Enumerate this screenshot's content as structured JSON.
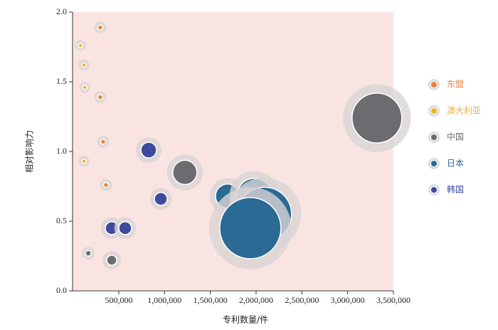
{
  "chart_data": {
    "type": "bubble",
    "x_label": "专利数量/件",
    "y_label": "相对影响力",
    "xlim": [
      0,
      3500000
    ],
    "ylim": [
      0,
      2.0
    ],
    "xticks": [
      {
        "value": 500000,
        "label": "500,000"
      },
      {
        "value": 1000000,
        "label": "1,000,000"
      },
      {
        "value": 1500000,
        "label": "1,500,000"
      },
      {
        "value": 2000000,
        "label": "2,000,000"
      },
      {
        "value": 2500000,
        "label": "2,500,000"
      },
      {
        "value": 3000000,
        "label": "3,000,000"
      },
      {
        "value": 3500000,
        "label": "3,500,000"
      }
    ],
    "yticks": [
      {
        "value": 0,
        "label": "0.0"
      },
      0.5,
      {
        "value": 1,
        "label": "1.0"
      },
      1.5,
      {
        "value": 2,
        "label": "2.0"
      }
    ],
    "background": "#f9e4e2",
    "legend": "right",
    "series": [
      {
        "name": "东盟",
        "color": "#e8833a",
        "x": [
          298000,
          298000,
          329000,
          360000
        ],
        "values": [
          1.89,
          1.39,
          1.07,
          0.76
        ],
        "sizes": [
          12,
          12,
          12,
          12
        ]
      },
      {
        "name": "澳大利亚",
        "color": "#f0b030",
        "x": [
          81000,
          120000,
          128000,
          120000
        ],
        "values": [
          1.76,
          1.62,
          1.46,
          0.93
        ],
        "sizes": [
          9,
          9,
          9,
          9
        ]
      },
      {
        "name": "中国",
        "color": "#6b6b70",
        "x": [
          3320000,
          1222000,
          167000,
          423000
        ],
        "values": [
          1.24,
          0.85,
          0.27,
          0.22
        ],
        "sizes": [
          1225,
          289,
          16,
          49
        ]
      },
      {
        "name": "日本",
        "color": "#2a6a94",
        "x": [
          1689000,
          1983000,
          2092000,
          1937000
        ],
        "values": [
          0.68,
          0.68,
          0.55,
          0.45
        ],
        "sizes": [
          289,
          625,
          1444,
          1849
        ]
      },
      {
        "name": "韩国",
        "color": "#3e4a9b",
        "x": [
          827000,
          959000,
          423000,
          570000
        ],
        "values": [
          1.01,
          0.66,
          0.45,
          0.45
        ],
        "sizes": [
          121,
          81,
          81,
          81
        ]
      }
    ]
  }
}
